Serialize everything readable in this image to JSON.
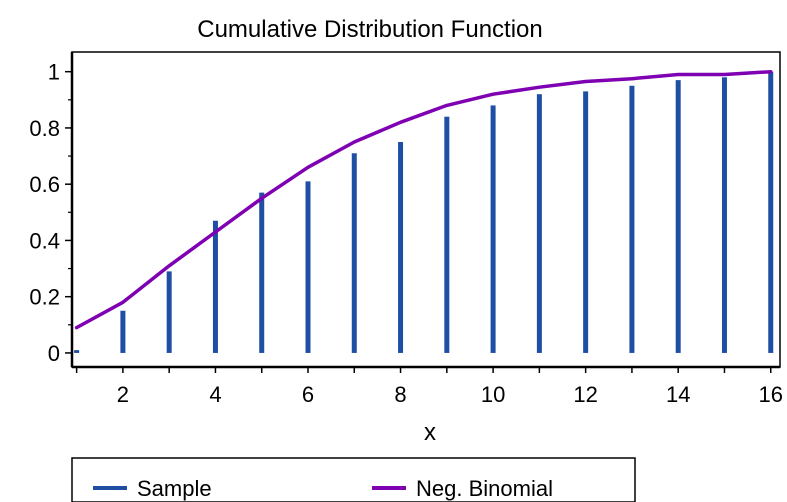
{
  "chart_data": {
    "type": "bar",
    "title": "Cumulative Distribution Function",
    "xlabel": "x",
    "ylabel": "",
    "xlim": [
      0.9,
      16.2
    ],
    "ylim": [
      -0.05,
      1.07
    ],
    "x_ticks": [
      2,
      4,
      6,
      8,
      10,
      12,
      14,
      16
    ],
    "y_ticks": [
      0,
      0.2,
      0.4,
      0.6,
      0.8,
      1
    ],
    "grid": false,
    "legend_position": "bottom",
    "series": [
      {
        "name": "Sample",
        "type": "bar",
        "color": "#1f4fa3",
        "x": [
          1,
          2,
          3,
          4,
          5,
          6,
          7,
          8,
          9,
          10,
          11,
          12,
          13,
          14,
          15,
          16
        ],
        "values": [
          0.01,
          0.15,
          0.29,
          0.47,
          0.57,
          0.61,
          0.71,
          0.75,
          0.84,
          0.88,
          0.92,
          0.93,
          0.95,
          0.97,
          0.98,
          1.0
        ]
      },
      {
        "name": "Neg. Binomial",
        "type": "line",
        "color": "#7f00b2",
        "x": [
          1,
          2,
          3,
          4,
          5,
          6,
          7,
          8,
          9,
          10,
          11,
          12,
          13,
          14,
          15,
          16
        ],
        "values": [
          0.09,
          0.18,
          0.31,
          0.43,
          0.55,
          0.66,
          0.75,
          0.82,
          0.88,
          0.92,
          0.945,
          0.965,
          0.975,
          0.99,
          0.99,
          1.0
        ]
      }
    ]
  }
}
